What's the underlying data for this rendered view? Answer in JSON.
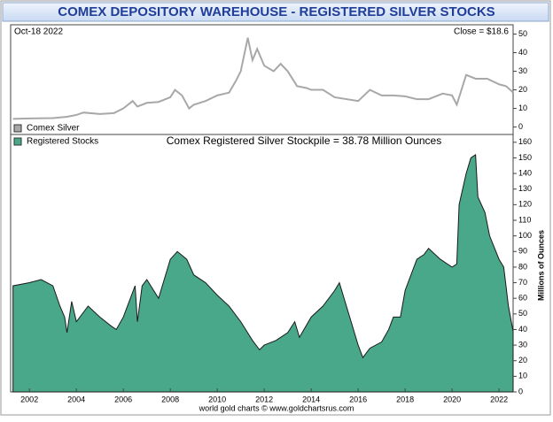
{
  "chart_data": [
    {
      "type": "line",
      "title": "COMEX DEPOSITORY WAREHOUSE - REGISTERED SILVER STOCKS",
      "date_label": "Oct-18  2022",
      "close_label": "Close = $18.6",
      "xlim": [
        2001.2,
        2022.6
      ],
      "ylim": [
        -4,
        55
      ],
      "yticks": [
        0,
        10,
        20,
        30,
        40,
        50
      ],
      "series": [
        {
          "name": "Comex Silver",
          "color": "#a8a8a8",
          "x": [
            2001.3,
            2002,
            2003,
            2003.6,
            2004,
            2004.3,
            2005,
            2005.6,
            2006,
            2006.4,
            2006.6,
            2007,
            2007.5,
            2008,
            2008.2,
            2008.5,
            2008.8,
            2009,
            2009.5,
            2010,
            2010.5,
            2010.8,
            2011,
            2011.3,
            2011.5,
            2011.7,
            2012,
            2012.4,
            2012.7,
            2013,
            2013.4,
            2013.8,
            2014,
            2014.5,
            2015,
            2015.5,
            2016,
            2016.5,
            2017,
            2017.5,
            2018,
            2018.5,
            2019,
            2019.6,
            2020,
            2020.2,
            2020.6,
            2021,
            2021.5,
            2022,
            2022.3,
            2022.6
          ],
          "values": [
            4.4,
            4.6,
            4.8,
            5.5,
            6.5,
            7.8,
            7,
            7.5,
            10,
            14,
            11,
            13,
            13.5,
            16,
            20,
            17,
            10,
            12,
            14,
            17,
            18.5,
            25,
            30,
            48,
            36,
            42,
            33,
            30,
            34,
            30,
            22,
            21,
            20,
            20,
            16,
            15,
            14,
            20,
            17,
            17,
            16.5,
            15,
            15,
            18,
            17,
            12,
            28,
            26,
            26,
            23,
            22,
            18.6
          ]
        }
      ]
    },
    {
      "type": "area",
      "annotation": "Comex Registered Silver Stockpile = 38.78 Million Ounces",
      "y_label": "Millions of Ounces",
      "xlim": [
        2001.2,
        2022.6
      ],
      "xticks": [
        2002,
        2004,
        2006,
        2008,
        2010,
        2012,
        2014,
        2016,
        2018,
        2020,
        2022
      ],
      "ylim": [
        0,
        165
      ],
      "yticks": [
        0,
        10,
        20,
        30,
        40,
        50,
        60,
        70,
        80,
        90,
        100,
        110,
        120,
        130,
        140,
        150,
        160
      ],
      "series": [
        {
          "name": "Registered Stocks",
          "color": "#4aa88a",
          "x": [
            2001.3,
            2002,
            2002.5,
            2003,
            2003.3,
            2003.5,
            2003.6,
            2003.8,
            2004,
            2004.5,
            2005,
            2005.5,
            2005.7,
            2006,
            2006.3,
            2006.5,
            2006.6,
            2006.8,
            2007,
            2007.5,
            2007.8,
            2008,
            2008.3,
            2008.7,
            2009,
            2009.5,
            2010,
            2010.5,
            2011,
            2011.5,
            2011.8,
            2012,
            2012.5,
            2013,
            2013.3,
            2013.5,
            2014,
            2014.5,
            2015,
            2015.2,
            2015.5,
            2016,
            2016.2,
            2016.5,
            2017,
            2017.3,
            2017.5,
            2017.8,
            2018,
            2018.5,
            2018.8,
            2019,
            2019.5,
            2020,
            2020.2,
            2020.3,
            2020.6,
            2020.8,
            2021,
            2021.1,
            2021.4,
            2021.6,
            2022,
            2022.2,
            2022.4,
            2022.6
          ],
          "values": [
            68,
            70,
            72,
            68,
            55,
            48,
            38,
            58,
            45,
            55,
            48,
            42,
            40,
            48,
            60,
            68,
            45,
            68,
            72,
            60,
            75,
            85,
            90,
            85,
            75,
            70,
            62,
            55,
            45,
            33,
            27,
            30,
            33,
            38,
            45,
            35,
            48,
            55,
            65,
            70,
            55,
            30,
            22,
            28,
            32,
            40,
            48,
            48,
            65,
            85,
            88,
            92,
            85,
            80,
            82,
            120,
            140,
            150,
            152,
            125,
            115,
            100,
            85,
            80,
            55,
            38.78
          ]
        }
      ]
    }
  ],
  "footer": "world gold charts © www.goldchartsrus.com"
}
